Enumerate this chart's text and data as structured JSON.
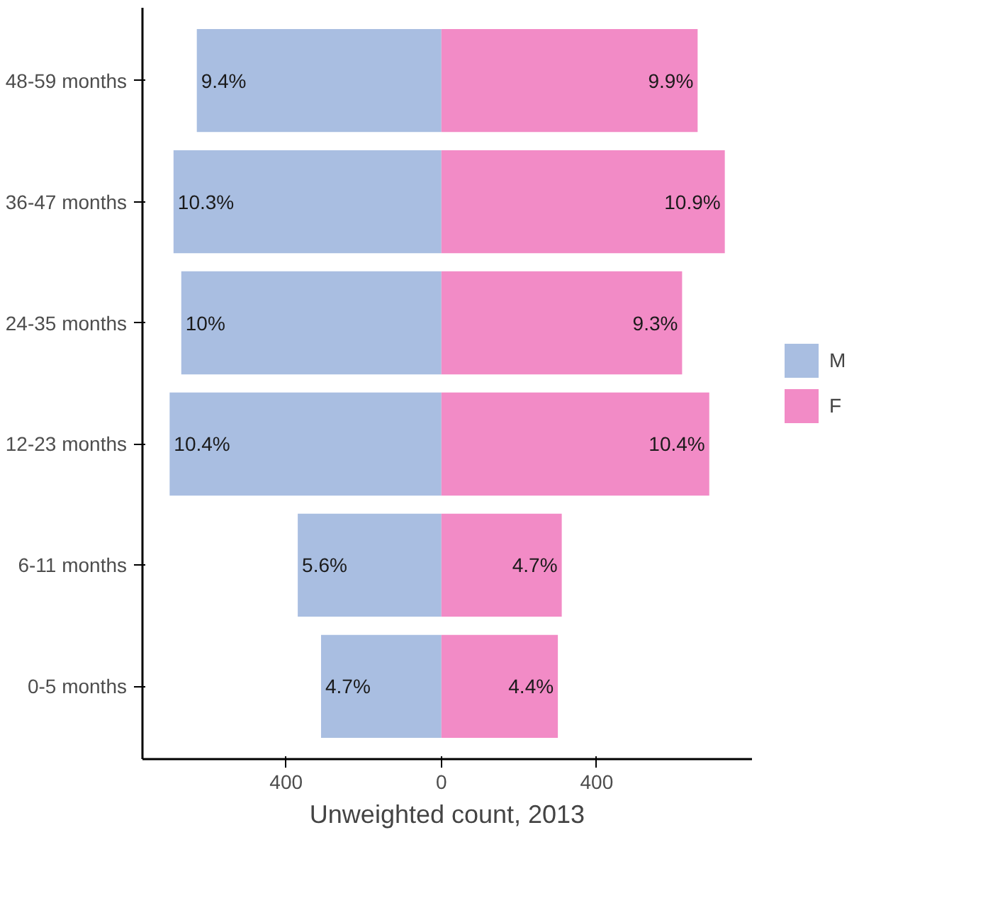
{
  "chart_data": {
    "type": "bar",
    "orientation": "horizontal",
    "xlabel": "Unweighted count, 2013",
    "categories": [
      "48-59 months",
      "36-47 months",
      "24-35 months",
      "12-23 months",
      "6-11 months",
      "0-5 months"
    ],
    "series": [
      {
        "name": "M",
        "color": "#a9bee1",
        "values": [
          -630,
          -690,
          -670,
          -700,
          -370,
          -310
        ]
      },
      {
        "name": "F",
        "color": "#f28bc6",
        "values": [
          660,
          730,
          620,
          690,
          310,
          300
        ]
      }
    ],
    "annotations": [
      {
        "text": "9.4%",
        "x": -630,
        "y": "48-59 months"
      },
      {
        "text": "10.3%",
        "x": -690,
        "y": "36-47 months"
      },
      {
        "text": "10%",
        "x": -670,
        "y": "24-35 months"
      },
      {
        "text": "10.4%",
        "x": -700,
        "y": "12-23 months"
      },
      {
        "text": "5.6%",
        "x": -370,
        "y": "6-11 months"
      },
      {
        "text": "4.7%",
        "x": -310,
        "y": "0-5 months"
      },
      {
        "text": "9.9%",
        "x": 660,
        "y": "48-59 months"
      },
      {
        "text": "10.9%",
        "x": 730,
        "y": "36-47 months"
      },
      {
        "text": "9.3%",
        "x": 620,
        "y": "24-35 months"
      },
      {
        "text": "10.4%",
        "x": 690,
        "y": "12-23 months"
      },
      {
        "text": "4.7%",
        "x": 310,
        "y": "6-11 months"
      },
      {
        "text": "4.4%",
        "x": 300,
        "y": "0-5 months"
      }
    ],
    "xlim": [
      -770,
      800
    ],
    "xticks": [
      {
        "value": -400,
        "label": "400"
      },
      0,
      400
    ],
    "grid": false,
    "legend": "right",
    "stacked": true
  }
}
